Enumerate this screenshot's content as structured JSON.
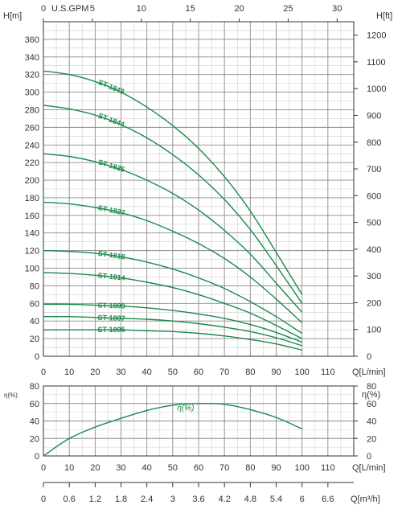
{
  "chart_data": [
    {
      "type": "line",
      "title": "",
      "xlabel": "Q[L/min]",
      "ylabel": "H[m]",
      "right_ylabel": "H[ft]",
      "top_xlabel": "U.S.GPM",
      "xlim": [
        0,
        120
      ],
      "ylim": [
        0,
        380
      ],
      "right_ylim": [
        0,
        1250
      ],
      "x_ticks": [
        "0",
        "10",
        "20",
        "30",
        "40",
        "50",
        "60",
        "70",
        "80",
        "90",
        "100",
        "110"
      ],
      "y_ticks": [
        "0",
        "20",
        "40",
        "60",
        "80",
        "100",
        "120",
        "140",
        "160",
        "180",
        "200",
        "220",
        "240",
        "260",
        "280",
        "300",
        "320",
        "340",
        "360"
      ],
      "right_y_ticks": [
        "0",
        "100",
        "200",
        "300",
        "400",
        "500",
        "600",
        "700",
        "800",
        "900",
        "1000",
        "1100",
        "1200"
      ],
      "top_ticks": [
        "0",
        "5",
        "10",
        "15",
        "20",
        "25",
        "30"
      ],
      "grid": true,
      "series": [
        {
          "name": "ST-1848",
          "x": [
            0,
            10,
            20,
            30,
            40,
            50,
            60,
            70,
            80,
            90,
            100
          ],
          "y": [
            324,
            320,
            312,
            300,
            283,
            262,
            236,
            204,
            165,
            118,
            70
          ]
        },
        {
          "name": "ST-1844",
          "x": [
            0,
            10,
            20,
            30,
            40,
            50,
            60,
            70,
            80,
            90,
            100
          ],
          "y": [
            285,
            281,
            274,
            263,
            248,
            229,
            206,
            178,
            144,
            103,
            60
          ]
        },
        {
          "name": "ST-1835",
          "x": [
            0,
            10,
            20,
            30,
            40,
            50,
            60,
            70,
            80,
            90,
            100
          ],
          "y": [
            230,
            227,
            221,
            212,
            200,
            185,
            166,
            143,
            116,
            83,
            50
          ]
        },
        {
          "name": "ST-1827",
          "x": [
            0,
            10,
            20,
            30,
            40,
            50,
            60,
            70,
            80,
            90,
            100
          ],
          "y": [
            175,
            173,
            169,
            163,
            154,
            142,
            128,
            111,
            90,
            65,
            38
          ]
        },
        {
          "name": "ST-1818",
          "x": [
            0,
            10,
            20,
            30,
            40,
            50,
            60,
            70,
            80,
            90,
            100
          ],
          "y": [
            120,
            119,
            117,
            113,
            107,
            99,
            89,
            77,
            62,
            45,
            26
          ]
        },
        {
          "name": "ST-1814",
          "x": [
            0,
            10,
            20,
            30,
            40,
            50,
            60,
            70,
            80,
            90,
            100
          ],
          "y": [
            95,
            94,
            92,
            89,
            84,
            78,
            70,
            60,
            49,
            35,
            20
          ]
        },
        {
          "name": "ST-1809",
          "x": [
            0,
            10,
            20,
            30,
            40,
            50,
            60,
            70,
            80,
            90,
            100
          ],
          "y": [
            59,
            59,
            58,
            57,
            55,
            52,
            48,
            43,
            36,
            27,
            16
          ]
        },
        {
          "name": "ST-1807",
          "x": [
            0,
            10,
            20,
            30,
            40,
            50,
            60,
            70,
            80,
            90,
            100
          ],
          "y": [
            45,
            45,
            44,
            43,
            42,
            40,
            37,
            33,
            28,
            21,
            12
          ]
        },
        {
          "name": "ST-1805",
          "x": [
            0,
            10,
            20,
            30,
            40,
            50,
            60,
            70,
            80,
            90,
            100
          ],
          "y": [
            30,
            30,
            30,
            30,
            29,
            28,
            26,
            23,
            19,
            14,
            7
          ]
        }
      ]
    },
    {
      "type": "line",
      "title": "",
      "xlabel": "Q[L/min]",
      "ylabel": "η(%)",
      "right_ylabel": "η(%)",
      "xlim": [
        0,
        120
      ],
      "ylim": [
        0,
        80
      ],
      "x_ticks": [
        "0",
        "10",
        "20",
        "30",
        "40",
        "50",
        "60",
        "70",
        "80",
        "90",
        "100",
        "110"
      ],
      "y_ticks": [
        "0",
        "20",
        "40",
        "60",
        "80"
      ],
      "grid": true,
      "series": [
        {
          "name": "η(%)",
          "x": [
            0,
            10,
            20,
            30,
            40,
            50,
            60,
            70,
            80,
            90,
            100
          ],
          "y": [
            0,
            20,
            33,
            43,
            52,
            58,
            60,
            59,
            53,
            44,
            31
          ]
        }
      ]
    }
  ],
  "bottom_axis": {
    "label": "Q[m³/h]",
    "ticks": [
      "0",
      "0.6",
      "1.2",
      "1.8",
      "2.4",
      "3",
      "3.6",
      "4.2",
      "4.8",
      "5.4",
      "6",
      "6.6"
    ]
  },
  "colors": {
    "curve": "#1a8a4a",
    "grid_minor": "#cfcfcf",
    "grid_major": "#8a8a8a",
    "axis": "#333333"
  }
}
